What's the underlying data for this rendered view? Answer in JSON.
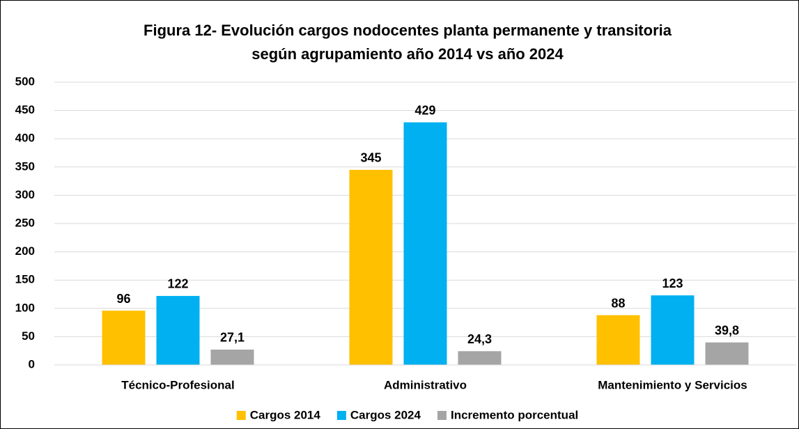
{
  "chart_data": {
    "type": "bar",
    "title": [
      "Figura 12- Evolución cargos nodocentes planta permanente y transitoria",
      "según agrupamiento año 2014 vs año 2024"
    ],
    "categories": [
      "Técnico-Profesional",
      "Administrativo",
      "Mantenimiento y Servicios"
    ],
    "series": [
      {
        "name": "Cargos 2014",
        "color": "#FFC000",
        "values": [
          96,
          345,
          88
        ]
      },
      {
        "name": "Cargos 2024",
        "color": "#00B0F0",
        "values": [
          122,
          429,
          123
        ]
      },
      {
        "name": "Incremento porcentual",
        "color": "#A5A5A5",
        "values": [
          27.1,
          24.3,
          39.8
        ],
        "value_labels": [
          "27,1",
          "24,3",
          "39,8"
        ]
      }
    ],
    "ylim": [
      0,
      500
    ],
    "yticks": [
      0,
      50,
      100,
      150,
      200,
      250,
      300,
      350,
      400,
      450,
      500
    ],
    "grid": true,
    "legend": "bottom"
  }
}
